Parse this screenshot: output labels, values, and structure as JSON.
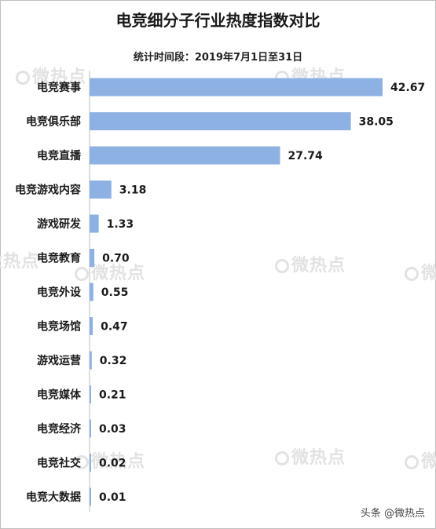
{
  "watermark": "微热点",
  "footer": "头条 @微热点",
  "chart_data": {
    "type": "bar",
    "orientation": "horizontal",
    "title": "电竞细分子行业热度指数对比",
    "subtitle": "统计时间段：2019年7月1日至31日",
    "categories": [
      "电竞赛事",
      "电竞俱乐部",
      "电竞直播",
      "电竞游戏内容",
      "游戏研发",
      "电竞教育",
      "电竞外设",
      "电竞场馆",
      "游戏运营",
      "电竞媒体",
      "电竞经济",
      "电竞社交",
      "电竞大数据"
    ],
    "values": [
      42.67,
      38.05,
      27.74,
      3.18,
      1.33,
      0.7,
      0.55,
      0.47,
      0.32,
      0.21,
      0.03,
      0.02,
      0.01
    ],
    "value_labels": [
      "42.67",
      "38.05",
      "27.74",
      "3.18",
      "1.33",
      "0.70",
      "0.55",
      "0.47",
      "0.32",
      "0.21",
      "0.03",
      "0.02",
      "0.01"
    ],
    "bar_color": "#8eb1e3",
    "axis_color": "#bfbfbf",
    "xlim": [
      0,
      42.67
    ],
    "grid": false,
    "legend": "none"
  }
}
